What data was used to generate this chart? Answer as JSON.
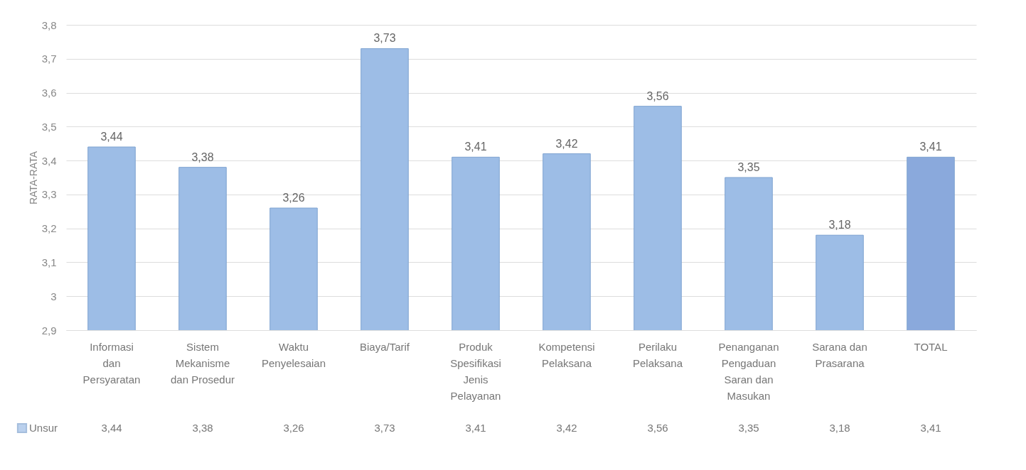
{
  "chart_data": {
    "type": "bar",
    "ylabel": "RATA-RATA",
    "categories": [
      "Informasi dan Persyaratan",
      "Sistem Mekanisme dan Prosedur",
      "Waktu Penyelesaian",
      "Biaya/Tarif",
      "Produk Spesifikasi Jenis Pelayanan",
      "Kompetensi Pelaksana",
      "Perilaku Pelaksana",
      "Penanganan Pengaduan Saran dan Masukan",
      "Sarana dan Prasarana",
      "TOTAL"
    ],
    "series": [
      {
        "name": "Unsur",
        "color": "#9dbde6",
        "colors": [
          "#9dbde6",
          "#9dbde6",
          "#9dbde6",
          "#9dbde6",
          "#9dbde6",
          "#9dbde6",
          "#9dbde6",
          "#9dbde6",
          "#9dbde6",
          "#8aa9dc"
        ],
        "values": [
          3.44,
          3.38,
          3.26,
          3.73,
          3.41,
          3.42,
          3.56,
          3.35,
          3.18,
          3.41
        ],
        "value_labels": [
          "3,44",
          "3,38",
          "3,26",
          "3,73",
          "3,41",
          "3,42",
          "3,56",
          "3,35",
          "3,18",
          "3,41"
        ]
      }
    ],
    "ylim": [
      2.9,
      3.8
    ],
    "yticks": [
      {
        "value": 2.9,
        "label": "2,9"
      },
      3,
      {
        "value": 3.1,
        "label": "3,1"
      },
      {
        "value": 3.2,
        "label": "3,2"
      },
      {
        "value": 3.3,
        "label": "3,3"
      },
      {
        "value": 3.4,
        "label": "3,4"
      },
      {
        "value": 3.5,
        "label": "3,5"
      },
      {
        "value": 3.6,
        "label": "3,6"
      },
      {
        "value": 3.7,
        "label": "3,7"
      },
      {
        "value": 3.8,
        "label": "3,8"
      }
    ],
    "grid": "y"
  }
}
